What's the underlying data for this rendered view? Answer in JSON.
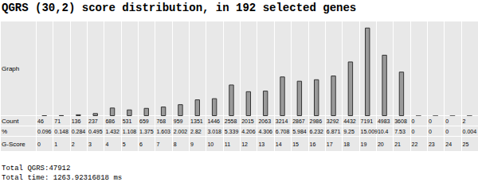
{
  "chart_data": {
    "type": "bar",
    "title": "QGRS (30,2) score distribution, in 192 selected genes",
    "categories": [
      0,
      1,
      2,
      3,
      4,
      5,
      6,
      7,
      8,
      9,
      10,
      11,
      12,
      13,
      14,
      15,
      16,
      17,
      18,
      19,
      20,
      21,
      22,
      23,
      24,
      25
    ],
    "values": [
      46,
      71,
      136,
      237,
      686,
      531,
      659,
      768,
      959,
      1351,
      1446,
      2558,
      2015,
      2063,
      3214,
      2867,
      2986,
      3292,
      4432,
      7191,
      4983,
      3608,
      0,
      0,
      0,
      2
    ],
    "percent": [
      0.096,
      0.148,
      0.284,
      0.495,
      1.432,
      1.108,
      1.375,
      1.603,
      2.002,
      2.82,
      3.018,
      5.339,
      4.206,
      4.306,
      6.708,
      5.984,
      6.232,
      6.871,
      9.25,
      15.009,
      10.4,
      7.53,
      0,
      0,
      0,
      0.004
    ],
    "color": "#9a9a9a",
    "ylim": [
      0,
      7500
    ],
    "yticks": [
      0,
      7500
    ],
    "grid": false,
    "tick_labels": false
  },
  "table": {
    "row_labels": {
      "graph": "Graph",
      "count": "Count",
      "percent": "%",
      "score": "G-Score"
    }
  },
  "footer": [
    "Total QGRS:47912",
    "Total time: 1263.92316818 ms"
  ]
}
